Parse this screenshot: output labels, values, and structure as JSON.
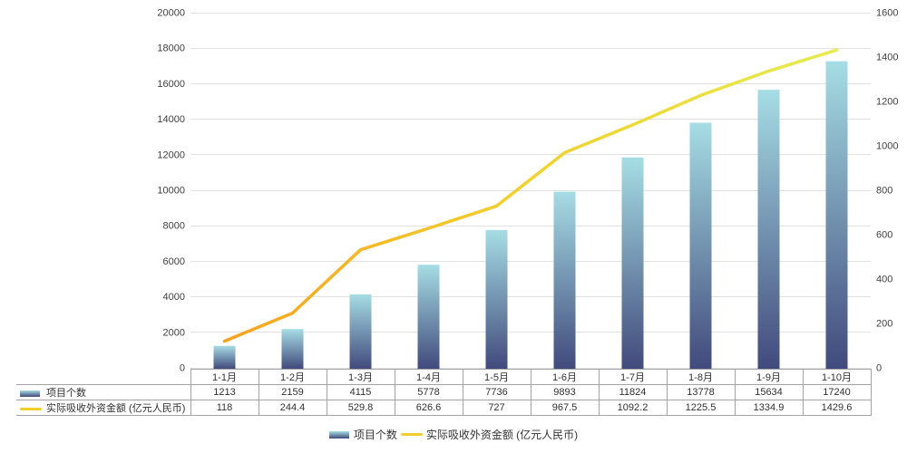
{
  "chart_data": {
    "type": "bar+line",
    "categories": [
      "1-1月",
      "1-2月",
      "1-3月",
      "1-4月",
      "1-5月",
      "1-6月",
      "1-7月",
      "1-8月",
      "1-9月",
      "1-10月"
    ],
    "series": [
      {
        "name": "项目个数",
        "type": "bar",
        "axis": "left",
        "values": [
          1213,
          2159,
          4115,
          5778,
          7736,
          9893,
          11824,
          13778,
          15634,
          17240
        ]
      },
      {
        "name": "实际吸收外资金额 (亿元人民币)",
        "type": "line",
        "axis": "right",
        "values": [
          118,
          244.4,
          529.8,
          626.6,
          727,
          967.5,
          1092.2,
          1225.5,
          1334.9,
          1429.6
        ]
      }
    ],
    "left_axis": {
      "min": 0,
      "max": 20000,
      "step": 2000
    },
    "right_axis": {
      "min": 0,
      "max": 1600,
      "step": 200
    },
    "grid": true,
    "legend_position": "bottom",
    "data_table_shown": true
  },
  "colors": {
    "bar_top": "#A6DDE4",
    "bar_bottom": "#414A7C",
    "line_start": "#F6A21F",
    "line_mid": "#F2CE2D",
    "line_end": "#E5EB50",
    "grid": "#E1E1E1",
    "axis_text": "#3F3F3F",
    "table_border": "#A3A3A3",
    "table_text": "#303030",
    "legend_line": "#F0CF2D",
    "legend_text": "#333333"
  }
}
